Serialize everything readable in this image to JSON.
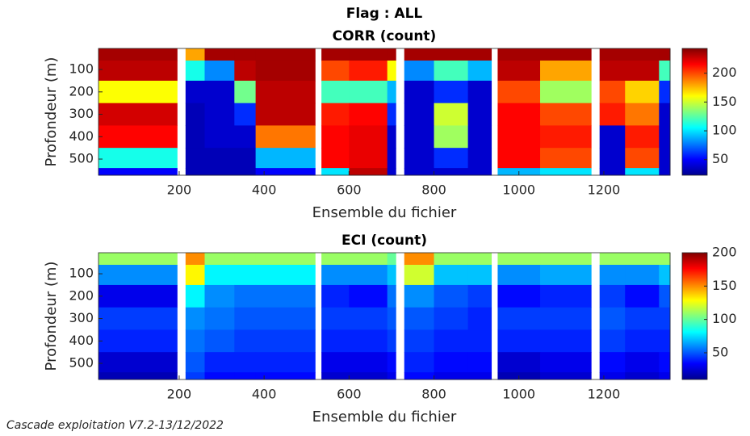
{
  "footer": "Cascade exploitation V7.2-13/12/2022",
  "chart_data": [
    {
      "type": "heatmap",
      "suptitle": "Flag : ALL",
      "title": "CORR (count)",
      "xlabel": "Ensemble du fichier",
      "ylabel": "Profondeur (m)",
      "colormap": "jet",
      "x_edges": [
        10,
        195,
        215,
        260,
        330,
        380,
        520,
        535,
        600,
        690,
        710,
        730,
        800,
        880,
        935,
        950,
        1050,
        1170,
        1190,
        1250,
        1330,
        1356
      ],
      "y_edges": [
        6,
        60,
        150,
        250,
        350,
        450,
        540,
        572
      ],
      "values": [
        [
          235,
          null,
          180,
          235,
          235,
          235,
          null,
          235,
          235,
          235,
          null,
          235,
          235,
          235,
          null,
          235,
          235,
          null,
          235,
          235,
          235
        ],
        [
          230,
          null,
          110,
          80,
          230,
          235,
          null,
          200,
          210,
          160,
          null,
          80,
          120,
          90,
          null,
          230,
          180,
          null,
          230,
          230,
          120
        ],
        [
          160,
          null,
          40,
          40,
          130,
          230,
          null,
          120,
          120,
          90,
          null,
          40,
          60,
          40,
          null,
          200,
          140,
          null,
          200,
          170,
          60
        ],
        [
          225,
          null,
          35,
          40,
          60,
          230,
          null,
          210,
          215,
          60,
          null,
          40,
          150,
          40,
          null,
          215,
          200,
          null,
          210,
          190,
          40
        ],
        [
          215,
          null,
          35,
          40,
          40,
          190,
          null,
          215,
          220,
          40,
          null,
          40,
          140,
          40,
          null,
          215,
          210,
          null,
          40,
          210,
          40
        ],
        [
          110,
          null,
          35,
          35,
          35,
          90,
          null,
          215,
          220,
          40,
          null,
          40,
          60,
          40,
          null,
          215,
          200,
          null,
          40,
          200,
          40
        ],
        [
          50,
          null,
          35,
          35,
          35,
          50,
          null,
          100,
          230,
          40,
          null,
          40,
          40,
          40,
          null,
          90,
          100,
          null,
          40,
          100,
          40
        ]
      ],
      "xlim": [
        10,
        1356
      ],
      "xticks": [
        200,
        400,
        600,
        800,
        1000,
        1200
      ],
      "ylim": [
        6,
        572
      ],
      "y_reversed": true,
      "yticks": [
        100,
        200,
        300,
        400,
        500
      ],
      "clim": [
        23,
        243
      ],
      "cticks": [
        50,
        100,
        150,
        200
      ]
    },
    {
      "type": "heatmap",
      "title": "ECI (count)",
      "xlabel": "Ensemble du fichier",
      "ylabel": "Profondeur (m)",
      "colormap": "jet",
      "x_edges": [
        10,
        195,
        215,
        260,
        330,
        380,
        520,
        535,
        600,
        690,
        710,
        730,
        800,
        880,
        935,
        950,
        1050,
        1170,
        1190,
        1250,
        1330,
        1356
      ],
      "y_edges": [
        6,
        60,
        150,
        250,
        350,
        450,
        540,
        572
      ],
      "values": [
        [
          110,
          null,
          150,
          110,
          110,
          110,
          null,
          110,
          110,
          100,
          null,
          150,
          110,
          110,
          null,
          110,
          110,
          null,
          110,
          110,
          110
        ],
        [
          60,
          null,
          130,
          80,
          80,
          80,
          null,
          60,
          60,
          70,
          null,
          120,
          70,
          70,
          null,
          60,
          65,
          null,
          60,
          60,
          70
        ],
        [
          30,
          null,
          80,
          60,
          55,
          55,
          null,
          40,
          35,
          55,
          null,
          60,
          50,
          45,
          null,
          35,
          40,
          null,
          45,
          35,
          50
        ],
        [
          45,
          null,
          60,
          55,
          50,
          50,
          null,
          45,
          45,
          50,
          null,
          50,
          45,
          40,
          null,
          45,
          45,
          null,
          50,
          45,
          45
        ],
        [
          40,
          null,
          55,
          50,
          45,
          45,
          null,
          40,
          40,
          45,
          null,
          45,
          40,
          40,
          null,
          40,
          40,
          null,
          45,
          40,
          40
        ],
        [
          25,
          null,
          50,
          40,
          40,
          40,
          null,
          30,
          30,
          35,
          null,
          40,
          35,
          35,
          null,
          25,
          30,
          null,
          35,
          30,
          35
        ],
        [
          20,
          null,
          45,
          35,
          35,
          35,
          null,
          25,
          25,
          30,
          null,
          35,
          30,
          30,
          null,
          20,
          25,
          null,
          30,
          25,
          30
        ]
      ],
      "xlim": [
        10,
        1356
      ],
      "xticks": [
        200,
        400,
        600,
        800,
        1000,
        1200
      ],
      "ylim": [
        6,
        572
      ],
      "y_reversed": true,
      "yticks": [
        100,
        200,
        300,
        400,
        500
      ],
      "clim": [
        10,
        200
      ],
      "cticks": [
        50,
        100,
        150,
        200
      ]
    }
  ]
}
